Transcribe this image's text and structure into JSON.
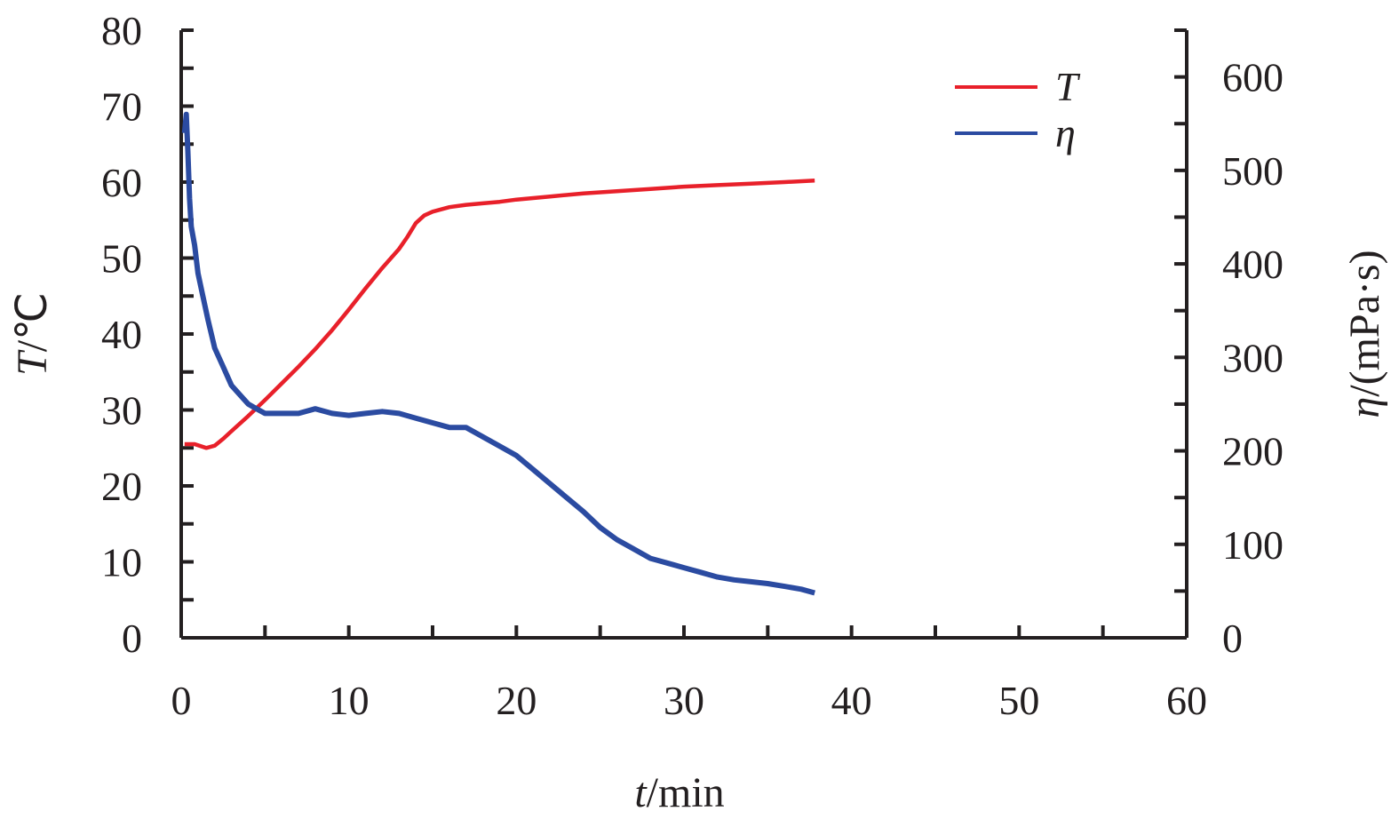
{
  "chart_data": {
    "type": "line",
    "xlabel": {
      "var": "t",
      "unit": "/min"
    },
    "ylabel_left": {
      "var": "T",
      "unit": "/℃"
    },
    "ylabel_right": {
      "var": "η",
      "unit": "/(mPa·s)"
    },
    "xlim": [
      0,
      60
    ],
    "ylim_left": [
      0,
      80
    ],
    "ylim_right": [
      0,
      650
    ],
    "x_ticks": [
      "0",
      "10",
      "20",
      "30",
      "40",
      "50",
      "60"
    ],
    "y_left_ticks": [
      "0",
      "10",
      "20",
      "30",
      "40",
      "50",
      "60",
      "70",
      "80"
    ],
    "y_right_ticks": [
      "0",
      "100",
      "200",
      "300",
      "400",
      "500",
      "600"
    ],
    "grid": false,
    "legend_position": "top-right",
    "series": [
      {
        "name": "T",
        "axis": "left",
        "color": "#e8202a",
        "x": [
          0.2,
          0.8,
          1.5,
          2.0,
          2.5,
          3.0,
          4.0,
          5.0,
          6.0,
          7.0,
          8.0,
          9.0,
          10.0,
          11.0,
          12.0,
          13.0,
          13.5,
          14.0,
          14.5,
          15.0,
          16.0,
          17.0,
          18.0,
          19.0,
          20.0,
          22.0,
          24.0,
          26.0,
          28.0,
          30.0,
          32.0,
          34.0,
          36.0,
          37.8
        ],
        "y": [
          25.5,
          25.5,
          25.0,
          25.3,
          26.2,
          27.2,
          29.2,
          31.3,
          33.5,
          35.7,
          38.0,
          40.5,
          43.2,
          46.0,
          48.7,
          51.2,
          52.8,
          54.6,
          55.6,
          56.1,
          56.7,
          57.0,
          57.2,
          57.4,
          57.7,
          58.1,
          58.5,
          58.8,
          59.1,
          59.4,
          59.6,
          59.8,
          60.0,
          60.2
        ]
      },
      {
        "name": "η",
        "axis": "right",
        "color": "#2b4ba1",
        "x": [
          0.2,
          0.3,
          0.4,
          0.5,
          0.6,
          0.8,
          1.0,
          1.3,
          1.6,
          2.0,
          2.5,
          3.0,
          3.5,
          4.0,
          4.5,
          5.0,
          6.0,
          7.0,
          8.0,
          9.0,
          10.0,
          11.0,
          12.0,
          13.0,
          14.0,
          15.0,
          16.0,
          17.0,
          18.0,
          19.0,
          20.0,
          21.0,
          22.0,
          23.0,
          24.0,
          25.0,
          26.0,
          27.0,
          28.0,
          29.0,
          30.0,
          31.0,
          32.0,
          33.0,
          34.0,
          35.0,
          36.0,
          37.0,
          37.8
        ],
        "y": [
          540,
          560,
          520,
          470,
          440,
          420,
          390,
          365,
          340,
          310,
          290,
          270,
          260,
          250,
          245,
          240,
          240,
          240,
          245,
          240,
          238,
          240,
          242,
          240,
          235,
          230,
          225,
          225,
          215,
          205,
          195,
          180,
          165,
          150,
          135,
          118,
          105,
          95,
          85,
          80,
          75,
          70,
          65,
          62,
          60,
          58,
          55,
          52,
          48
        ]
      }
    ]
  }
}
